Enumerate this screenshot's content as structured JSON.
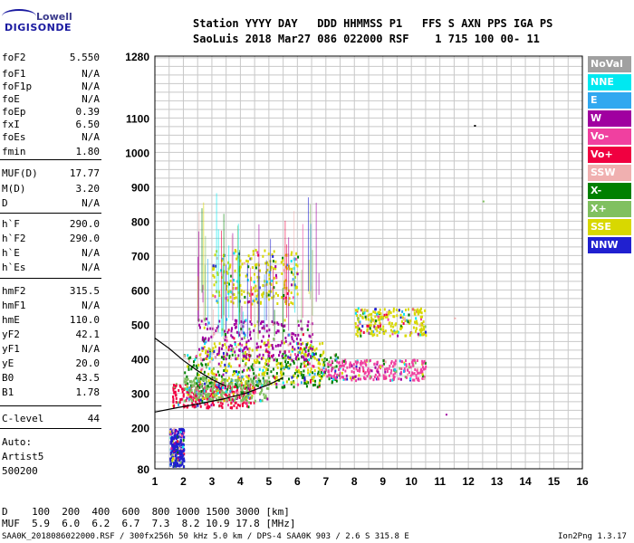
{
  "logo": {
    "line1": "Lowell",
    "line2": "DIGISONDE"
  },
  "header": {
    "row1": "Station YYYY DAY   DDD HHMMSS P1   FFS S AXN PPS IGA PS",
    "row2": "SaoLuis 2018 Mar27 086 022000 RSF    1 715 100 00- 11"
  },
  "params": [
    {
      "name": "foF2",
      "value": "5.550"
    },
    {
      "name": "foF1",
      "value": "N/A"
    },
    {
      "name": "foF1p",
      "value": "N/A"
    },
    {
      "name": "foE",
      "value": "N/A"
    },
    {
      "name": "foEp",
      "value": "0.39"
    },
    {
      "name": "fxI",
      "value": "6.50"
    },
    {
      "name": "foEs",
      "value": "N/A"
    },
    {
      "name": "fmin",
      "value": "1.80"
    },
    {
      "name": "MUF(D)",
      "value": "17.77"
    },
    {
      "name": "M(D)",
      "value": "3.20"
    },
    {
      "name": "D",
      "value": "N/A"
    },
    {
      "name": "h`F",
      "value": "290.0"
    },
    {
      "name": "h`F2",
      "value": "290.0"
    },
    {
      "name": "h`E",
      "value": "N/A"
    },
    {
      "name": "h`Es",
      "value": "N/A"
    },
    {
      "name": "hmF2",
      "value": "315.5"
    },
    {
      "name": "hmF1",
      "value": "N/A"
    },
    {
      "name": "hmE",
      "value": "110.0"
    },
    {
      "name": "yF2",
      "value": "42.1"
    },
    {
      "name": "yF1",
      "value": "N/A"
    },
    {
      "name": "yE",
      "value": "20.0"
    },
    {
      "name": "B0",
      "value": "43.5"
    },
    {
      "name": "B1",
      "value": "1.78"
    },
    {
      "name": "C-level",
      "value": "44"
    }
  ],
  "auto": {
    "line1": "Auto:",
    "line2": "Artist5",
    "line3": "500200"
  },
  "legend": [
    {
      "label": "NoVal",
      "color": "#a0a0a0"
    },
    {
      "label": "NNE",
      "color": "#00e8f0"
    },
    {
      "label": "E",
      "color": "#30a8f0"
    },
    {
      "label": "W",
      "color": "#a000a0"
    },
    {
      "label": "Vo-",
      "color": "#f040a0"
    },
    {
      "label": "Vo+",
      "color": "#f00040"
    },
    {
      "label": "SSW",
      "color": "#f0b0b0"
    },
    {
      "label": "X-",
      "color": "#008000"
    },
    {
      "label": "X+",
      "color": "#80c060"
    },
    {
      "label": "SSE",
      "color": "#d8d800"
    },
    {
      "label": "NNW",
      "color": "#2020d0"
    }
  ],
  "footer": {
    "d_row": "D    100  200  400  600  800 1000 1500 3000 [km]",
    "muf_row": "MUF  5.9  6.0  6.2  6.7  7.3  8.2 10.9 17.8 [MHz]",
    "info": "SAA0K_2018086022000.RSF / 300fx256h 50 kHz 5.0 km / DPS-4 SAA0K 903 / 2.6 S 315.8 E",
    "version": "Ion2Png 1.3.17"
  },
  "chart_data": {
    "type": "scatter",
    "xlim": [
      1,
      16
    ],
    "ylim": [
      80,
      1280
    ],
    "x_ticks": [
      "1",
      "2",
      "3",
      "4",
      "5",
      "6",
      "7",
      "8",
      "9",
      "10",
      "11",
      "12",
      "13",
      "14",
      "15",
      "16"
    ],
    "y_ticks": [
      {
        "value": 80,
        "label": "80"
      },
      {
        "value": 200,
        "label": "200"
      },
      {
        "value": 300,
        "label": "300"
      },
      {
        "value": 400,
        "label": "400"
      },
      {
        "value": 500,
        "label": "500"
      },
      {
        "value": 600,
        "label": "600"
      },
      {
        "value": 700,
        "label": "700"
      },
      {
        "value": 800,
        "label": "800"
      },
      {
        "value": 900,
        "label": "900"
      },
      {
        "value": 1000,
        "label": "1000"
      },
      {
        "value": 1100,
        "label": "1100"
      },
      {
        "value": 1280,
        "label": "1280"
      }
    ],
    "grid": true,
    "clusters": [
      {
        "x": [
          1.6,
          4.5
        ],
        "y": [
          260,
          330
        ],
        "color": "#f00040"
      },
      {
        "x": [
          2.0,
          7.5
        ],
        "y": [
          320,
          420
        ],
        "color": "#008000"
      },
      {
        "x": [
          2.5,
          7.0
        ],
        "y": [
          330,
          450
        ],
        "color": "#d8d800"
      },
      {
        "x": [
          7.0,
          10.5
        ],
        "y": [
          340,
          400
        ],
        "color": "#f040a0"
      },
      {
        "x": [
          3.0,
          6.0
        ],
        "y": [
          560,
          720
        ],
        "color": "#d8d800"
      },
      {
        "x": [
          2.5,
          6.5
        ],
        "y": [
          400,
          520
        ],
        "color": "#a000a0"
      },
      {
        "x": [
          8.0,
          10.5
        ],
        "y": [
          470,
          550
        ],
        "color": "#d8d800"
      },
      {
        "x": [
          2.0,
          5.0
        ],
        "y": [
          280,
          350
        ],
        "color": "#80c060"
      },
      {
        "x": [
          1.5,
          2.0
        ],
        "y": [
          90,
          200
        ],
        "color": "#2020d0"
      }
    ],
    "outliers": [
      {
        "x": 12.2,
        "y": 1080,
        "color": "#000000"
      },
      {
        "x": 12.5,
        "y": 860,
        "color": "#80c060"
      },
      {
        "x": 11.5,
        "y": 520,
        "color": "#f0b0b0"
      },
      {
        "x": 11.2,
        "y": 240,
        "color": "#a000a0"
      }
    ],
    "curves": [
      {
        "x": [
          1.0,
          1.8,
          2.6,
          3.4,
          4.2,
          5.0,
          5.5
        ],
        "y": [
          245,
          258,
          270,
          283,
          300,
          325,
          345
        ],
        "color": "#000000"
      },
      {
        "x": [
          1.0,
          1.5,
          2.0,
          2.5,
          3.0,
          3.5
        ],
        "y": [
          460,
          430,
          395,
          365,
          340,
          320
        ],
        "color": "#000000"
      }
    ]
  }
}
